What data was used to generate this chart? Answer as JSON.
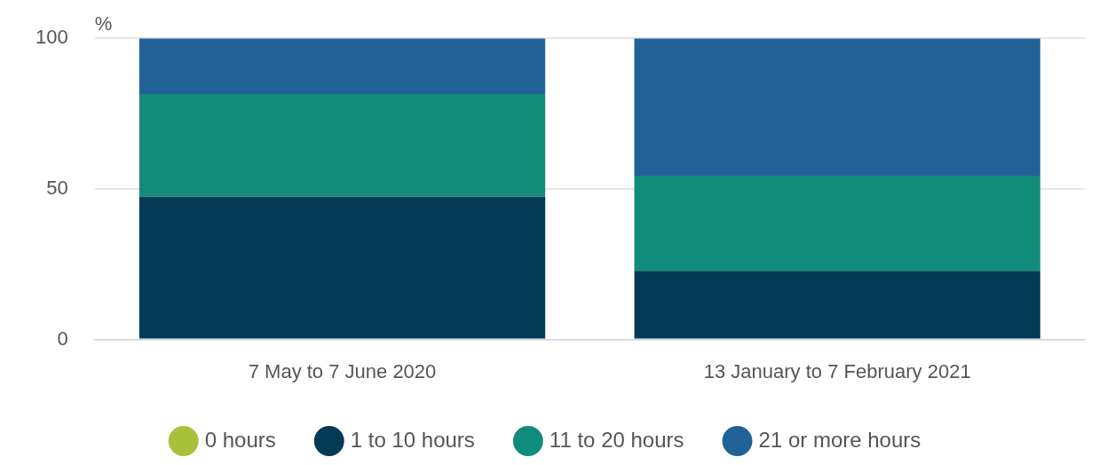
{
  "chart_data": {
    "type": "bar",
    "stacked": true,
    "ylabel": "%",
    "categories": [
      "7 May to 7 June 2020",
      "13 January to 7 February 2021"
    ],
    "series": [
      {
        "name": "0 hours",
        "color": "#a9c03b",
        "values": [
          0,
          0
        ]
      },
      {
        "name": "1 to 10 hours",
        "color": "#033a56",
        "values": [
          47.4,
          22.8
        ]
      },
      {
        "name": "11 to 20 hours",
        "color": "#128c7a",
        "values": [
          34.1,
          31.6
        ]
      },
      {
        "name": "21 or more hours",
        "color": "#226196",
        "values": [
          18.5,
          45.6
        ]
      }
    ],
    "ylim": [
      0,
      100
    ],
    "yticks": [
      0,
      50,
      100
    ],
    "grid": "y",
    "legend": "bottom"
  }
}
